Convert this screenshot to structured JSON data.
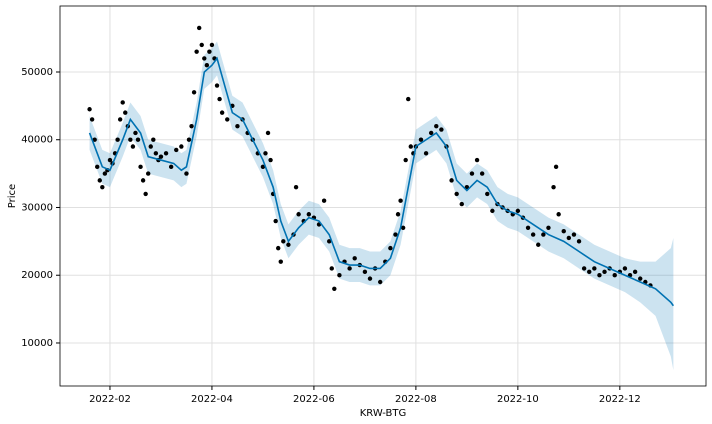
{
  "chart_data": {
    "type": "forecast",
    "xlabel": "KRW-BTG",
    "ylabel": "Price",
    "xlim": [
      1.02,
      13.69
    ],
    "ylim": [
      3650,
      59740
    ],
    "xticks": [
      {
        "value": 2,
        "label": "2022-02"
      },
      {
        "value": 4,
        "label": "2022-04"
      },
      {
        "value": 6,
        "label": "2022-06"
      },
      {
        "value": 8,
        "label": "2022-08"
      },
      {
        "value": 10,
        "label": "2022-10"
      },
      {
        "value": 12,
        "label": "2022-12"
      }
    ],
    "yticks": [
      10000,
      20000,
      30000,
      40000,
      50000
    ],
    "grid": true,
    "series": [
      {
        "type": "band",
        "color": "#0072B2",
        "x": [
          1.6,
          1.85,
          2.0,
          2.25,
          2.4,
          2.6,
          2.75,
          3.0,
          3.25,
          3.4,
          3.5,
          3.7,
          3.85,
          4.0,
          4.1,
          4.25,
          4.4,
          4.6,
          4.8,
          5.0,
          5.2,
          5.35,
          5.5,
          5.7,
          5.9,
          6.1,
          6.3,
          6.5,
          6.7,
          6.9,
          7.1,
          7.3,
          7.5,
          7.7,
          7.85,
          8.0,
          8.2,
          8.4,
          8.6,
          8.8,
          9.0,
          9.2,
          9.4,
          9.6,
          9.8,
          10.0,
          10.3,
          10.6,
          10.9,
          11.2,
          11.5,
          11.8,
          12.1,
          12.4,
          12.7,
          13.0,
          13.05
        ],
        "upper": [
          43500,
          38500,
          38000,
          42500,
          45500,
          43500,
          40000,
          39500,
          39000,
          38000,
          38500,
          45500,
          52500,
          53500,
          54500,
          50500,
          46500,
          45500,
          42500,
          39500,
          35500,
          30500,
          27500,
          29500,
          31000,
          30500,
          28500,
          24500,
          24000,
          24000,
          23500,
          23500,
          25000,
          29500,
          35500,
          41500,
          42500,
          43500,
          41500,
          36500,
          35000,
          36500,
          35500,
          33000,
          32000,
          31500,
          30000,
          28500,
          27500,
          26000,
          24500,
          23500,
          22500,
          22000,
          22000,
          24000,
          25500
        ],
        "lower": [
          38500,
          33500,
          33000,
          37500,
          40500,
          38500,
          35000,
          34500,
          34000,
          33000,
          33500,
          40500,
          47500,
          48500,
          49500,
          45500,
          41500,
          40500,
          37500,
          34500,
          30500,
          25500,
          22500,
          24500,
          26000,
          25500,
          23500,
          19500,
          19000,
          19000,
          18500,
          18500,
          20000,
          24500,
          30500,
          36500,
          37500,
          38500,
          36500,
          31500,
          30000,
          31500,
          30500,
          28000,
          27000,
          26500,
          25000,
          23500,
          22500,
          21000,
          19500,
          18500,
          17500,
          16000,
          14000,
          8000,
          6000
        ]
      },
      {
        "type": "scatter",
        "color": "#000000",
        "x": [
          1.6,
          1.65,
          1.7,
          1.75,
          1.8,
          1.85,
          1.9,
          1.95,
          2.0,
          2.05,
          2.1,
          2.15,
          2.2,
          2.25,
          2.3,
          2.35,
          2.4,
          2.45,
          2.5,
          2.55,
          2.6,
          2.65,
          2.7,
          2.75,
          2.8,
          2.85,
          2.9,
          2.95,
          3.0,
          3.1,
          3.2,
          3.3,
          3.4,
          3.5,
          3.55,
          3.6,
          3.65,
          3.7,
          3.75,
          3.8,
          3.85,
          3.9,
          3.95,
          4.0,
          4.05,
          4.1,
          4.15,
          4.2,
          4.3,
          4.4,
          4.5,
          4.6,
          4.7,
          4.8,
          4.9,
          5.0,
          5.05,
          5.1,
          5.15,
          5.2,
          5.25,
          5.3,
          5.35,
          5.4,
          5.5,
          5.6,
          5.65,
          5.7,
          5.8,
          5.9,
          6.0,
          6.1,
          6.2,
          6.3,
          6.35,
          6.4,
          6.5,
          6.6,
          6.7,
          6.8,
          6.9,
          7.0,
          7.1,
          7.2,
          7.3,
          7.4,
          7.5,
          7.6,
          7.65,
          7.7,
          7.75,
          7.8,
          7.85,
          7.9,
          7.95,
          8.0,
          8.1,
          8.2,
          8.3,
          8.4,
          8.5,
          8.6,
          8.7,
          8.8,
          8.9,
          9.0,
          9.1,
          9.2,
          9.3,
          9.4,
          9.5,
          9.6,
          9.7,
          9.8,
          9.9,
          10.0,
          10.1,
          10.2,
          10.3,
          10.4,
          10.5,
          10.6,
          10.7,
          10.75,
          10.8,
          10.9,
          11.0,
          11.1,
          11.2,
          11.3,
          11.4,
          11.5,
          11.6,
          11.7,
          11.8,
          11.9,
          12.0,
          12.1,
          12.2,
          12.3,
          12.4,
          12.5,
          12.6
        ],
        "values": [
          44500,
          43000,
          40000,
          36000,
          34000,
          33000,
          35000,
          35500,
          37000,
          36500,
          38000,
          40000,
          43000,
          45500,
          44000,
          42000,
          40000,
          39000,
          41000,
          40000,
          36000,
          34000,
          32000,
          35000,
          39000,
          40000,
          38000,
          37000,
          37500,
          38000,
          36000,
          38500,
          39000,
          35000,
          40000,
          42000,
          47000,
          53000,
          56500,
          54000,
          52000,
          51000,
          53000,
          54000,
          52000,
          48000,
          46000,
          44000,
          43000,
          45000,
          42000,
          43000,
          41000,
          40000,
          38000,
          36000,
          38000,
          41000,
          37000,
          32000,
          28000,
          24000,
          22000,
          25000,
          24500,
          26000,
          33000,
          29000,
          28000,
          29000,
          28500,
          27500,
          31000,
          25000,
          21000,
          18000,
          20000,
          22000,
          21000,
          22500,
          21500,
          20500,
          19500,
          21000,
          19000,
          22000,
          24000,
          26000,
          29000,
          31000,
          27000,
          37000,
          46000,
          39000,
          38000,
          39000,
          40000,
          38000,
          41000,
          42000,
          41500,
          39000,
          34000,
          32000,
          30500,
          33000,
          35000,
          37000,
          35000,
          32000,
          29500,
          30500,
          30000,
          29500,
          29000,
          29500,
          28500,
          27000,
          26000,
          24500,
          26000,
          27000,
          33000,
          36000,
          29000,
          26500,
          25500,
          26000,
          25000,
          21000,
          20500,
          21000,
          20000,
          20500,
          21000,
          20000,
          20500,
          21000,
          20000,
          20500,
          19500,
          19000,
          18500
        ]
      },
      {
        "type": "line",
        "color": "#0072B2",
        "x": [
          1.6,
          1.85,
          2.0,
          2.25,
          2.4,
          2.6,
          2.75,
          3.0,
          3.25,
          3.4,
          3.5,
          3.7,
          3.85,
          4.0,
          4.1,
          4.25,
          4.4,
          4.6,
          4.8,
          5.0,
          5.2,
          5.35,
          5.5,
          5.7,
          5.9,
          6.1,
          6.3,
          6.5,
          6.7,
          6.9,
          7.1,
          7.3,
          7.5,
          7.7,
          7.85,
          8.0,
          8.2,
          8.4,
          8.6,
          8.8,
          9.0,
          9.2,
          9.4,
          9.6,
          9.8,
          10.0,
          10.3,
          10.6,
          10.9,
          11.2,
          11.5,
          11.8,
          12.1,
          12.4,
          12.7,
          13.0,
          13.05
        ],
        "values": [
          41000,
          36000,
          35500,
          40000,
          43000,
          41000,
          37500,
          37000,
          36500,
          35500,
          36000,
          43000,
          50000,
          51000,
          52000,
          48000,
          44000,
          43000,
          40000,
          37000,
          33000,
          28000,
          25000,
          27000,
          28500,
          28000,
          26000,
          22000,
          21500,
          21500,
          21000,
          21000,
          22500,
          27000,
          33000,
          39000,
          40000,
          41000,
          39000,
          34000,
          32500,
          34000,
          33000,
          30500,
          29500,
          29000,
          27500,
          26000,
          25000,
          23500,
          22000,
          21000,
          20000,
          19000,
          18000,
          16000,
          15500
        ]
      }
    ]
  }
}
